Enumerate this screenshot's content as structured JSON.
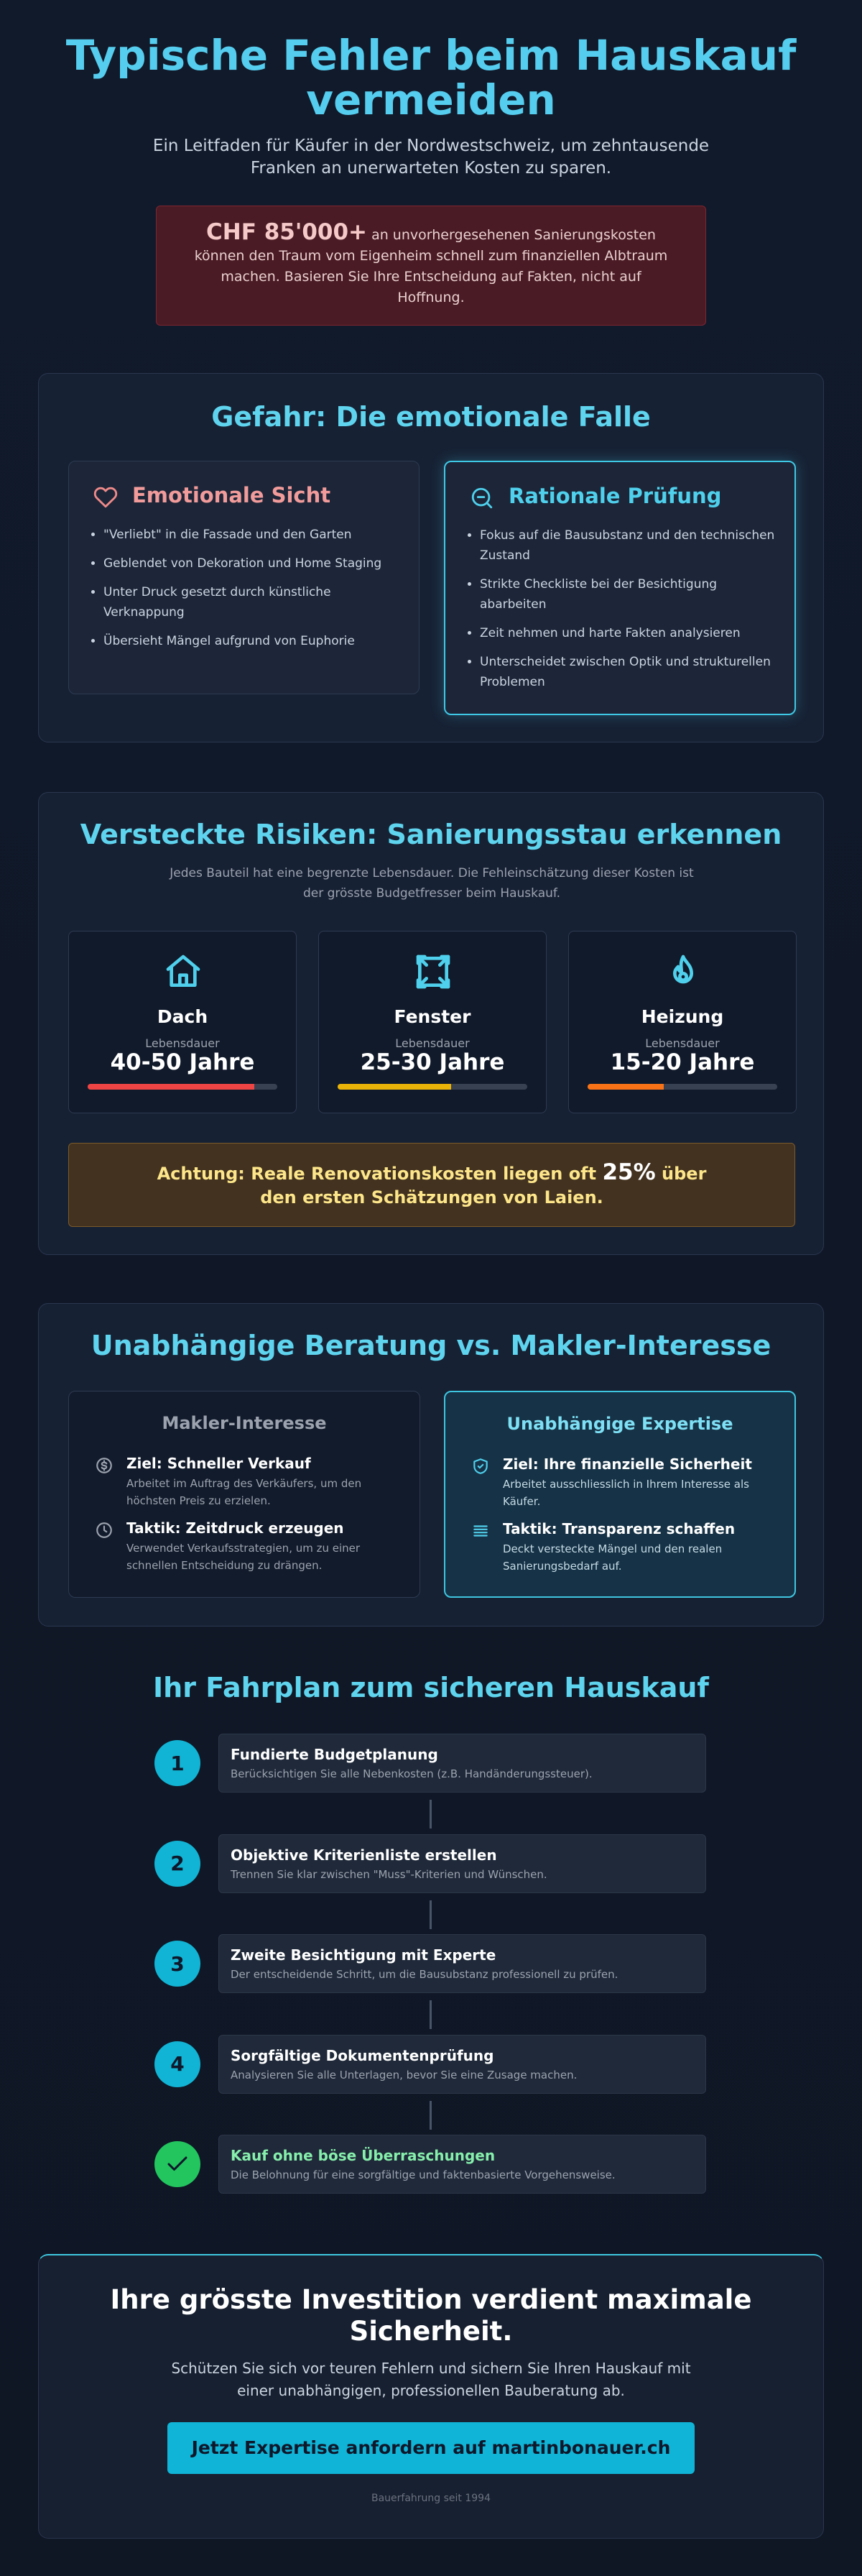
{
  "header": {
    "title": "Typische Fehler beim Hauskauf vermeiden",
    "subtitle": "Ein Leitfaden für Käufer in der Nordwestschweiz, um zehntausende Franken an unerwarteten Kosten zu sparen."
  },
  "alert": {
    "amount": "CHF 85'000+",
    "text": "an unvorhergesehenen Sanierungskosten können den Traum vom Eigenheim schnell zum finanziellen Albtraum machen. Basieren Sie Ihre Entscheidung auf Fakten, nicht auf Hoffnung."
  },
  "emotional_trap": {
    "title": "Gefahr: Die emotionale Falle",
    "cards": [
      {
        "title": "Emotionale Sicht",
        "items": [
          "\"Verliebt\" in die Fassade und den Garten",
          "Geblendet von Dekoration und Home Staging",
          "Unter Druck gesetzt durch künstliche Verknappung",
          "Übersieht Mängel aufgrund von Euphorie"
        ]
      },
      {
        "title": "Rationale Prüfung",
        "items": [
          "Fokus auf die Bausubstanz und den technischen Zustand",
          "Strikte Checkliste bei der Besichtigung abarbeiten",
          "Zeit nehmen und harte Fakten analysieren",
          "Unterscheidet zwischen Optik und strukturellen Problemen"
        ]
      }
    ]
  },
  "hidden_risks": {
    "title": "Versteckte Risiken: Sanierungsstau erkennen",
    "subtitle": "Jedes Bauteil hat eine begrenzte Lebensdauer. Die Fehleinschätzung dieser Kosten ist der grösste Budgetfresser beim Hauskauf.",
    "components": [
      {
        "name": "Dach",
        "label": "Lebensdauer",
        "lifespan": "40-50 Jahre"
      },
      {
        "name": "Fenster",
        "label": "Lebensdauer",
        "lifespan": "25-30 Jahre"
      },
      {
        "name": "Heizung",
        "label": "Lebensdauer",
        "lifespan": "15-20 Jahre"
      }
    ],
    "warning": {
      "before": "Achtung: Reale Renovationskosten liegen oft",
      "highlight": "25%",
      "after": "über den ersten Schätzungen von Laien."
    }
  },
  "advice": {
    "title": "Unabhängige Beratung vs. Makler-Interesse",
    "columns": [
      {
        "title": "Makler-Interesse",
        "points": [
          {
            "heading": "Ziel: Schneller Verkauf",
            "text": "Arbeitet im Auftrag des Verkäufers, um den höchsten Preis zu erzielen."
          },
          {
            "heading": "Taktik: Zeitdruck erzeugen",
            "text": "Verwendet Verkaufsstrategien, um zu einer schnellen Entscheidung zu drängen."
          }
        ]
      },
      {
        "title": "Unabhängige Expertise",
        "points": [
          {
            "heading": "Ziel: Ihre finanzielle Sicherheit",
            "text": "Arbeitet ausschliesslich in Ihrem Interesse als Käufer."
          },
          {
            "heading": "Taktik: Transparenz schaffen",
            "text": "Deckt versteckte Mängel und den realen Sanierungsbedarf auf."
          }
        ]
      }
    ]
  },
  "roadmap": {
    "title": "Ihr Fahrplan zum sicheren Hauskauf",
    "steps": [
      {
        "number": "1",
        "title": "Fundierte Budgetplanung",
        "text": "Berücksichtigen Sie alle Nebenkosten (z.B. Handänderungssteuer)."
      },
      {
        "number": "2",
        "title": "Objektive Kriterienliste erstellen",
        "text": "Trennen Sie klar zwischen \"Muss\"-Kriterien und Wünschen."
      },
      {
        "number": "3",
        "title": "Zweite Besichtigung mit Experte",
        "text": "Der entscheidende Schritt, um die Bausubstanz professionell zu prüfen."
      },
      {
        "number": "4",
        "title": "Sorgfältige Dokumentenprüfung",
        "text": "Analysieren Sie alle Unterlagen, bevor Sie eine Zusage machen."
      },
      {
        "title": "Kauf ohne böse Überraschungen",
        "text": "Die Belohnung für eine sorgfältige und faktenbasierte Vorgehensweise."
      }
    ]
  },
  "cta": {
    "title": "Ihre grösste Investition verdient maximale Sicherheit.",
    "text": "Schützen Sie sich vor teuren Fehlern und sichern Sie Ihren Hauskauf mit einer unabhängigen, professionellen Bauberatung ab.",
    "button": "Jetzt Expertise anfordern auf martinbonauer.ch",
    "footnote": "Bauerfahrung seit 1994"
  }
}
